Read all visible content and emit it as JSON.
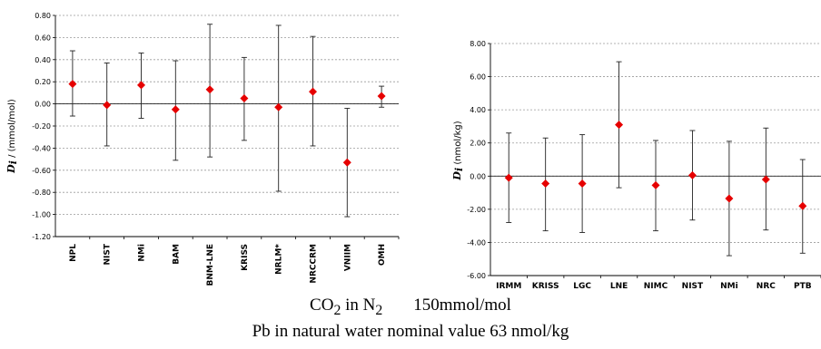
{
  "captions": {
    "line1_gas": "CO",
    "line1_gas_sub": "2",
    "line1_in": " in N",
    "line1_in_sub": "2",
    "line1_value": "150mmol/mol",
    "line2": "Pb in natural water nominal value 63 nmol/kg"
  },
  "chart_data": [
    {
      "type": "scatter",
      "subtype": "errorbar",
      "ylabel_symbol": "D",
      "ylabel_sub": "i",
      "ylabel_unit": " / (mmol/mol)",
      "ylim": [
        -1.2,
        0.8
      ],
      "yticks": [
        -1.2,
        -1.0,
        -0.8,
        -0.6,
        -0.4,
        -0.2,
        0.0,
        0.2,
        0.4,
        0.6,
        0.8
      ],
      "ytick_labels": [
        "-1.20",
        "-1.00",
        "-0.80",
        "-0.60",
        "-0.40",
        "-0.20",
        "0.00",
        "0.20",
        "0.40",
        "0.60",
        "0.80"
      ],
      "grid": true,
      "categories": [
        "NPL",
        "NIST",
        "NMi",
        "BAM",
        "BNM-LNE",
        "KRISS",
        "NRLM*",
        "NRCCRM",
        "VNIIM",
        "OMH"
      ],
      "values": [
        0.18,
        -0.01,
        0.17,
        -0.05,
        0.13,
        0.05,
        -0.03,
        0.11,
        -0.53,
        0.07
      ],
      "upper": [
        0.48,
        0.37,
        0.46,
        0.39,
        0.72,
        0.42,
        0.71,
        0.61,
        -0.04,
        0.16
      ],
      "lower": [
        -0.11,
        -0.38,
        -0.13,
        -0.51,
        -0.48,
        -0.33,
        -0.79,
        -0.38,
        -1.02,
        -0.03
      ],
      "marker_color": "#e60000"
    },
    {
      "type": "scatter",
      "subtype": "errorbar",
      "ylabel_symbol": "D",
      "ylabel_sub": "i",
      "ylabel_unit": " (nmol/kg)",
      "ylim": [
        -6.0,
        8.0
      ],
      "yticks": [
        -6,
        -4,
        -2,
        0,
        2,
        4,
        6,
        8
      ],
      "ytick_labels": [
        "-6.00",
        "-4.00",
        "-2.00",
        "0.00",
        "2.00",
        "4.00",
        "6.00",
        "8.00"
      ],
      "grid": true,
      "categories": [
        "IRMM",
        "KRISS",
        "LGC",
        "LNE",
        "NIMC",
        "NIST",
        "NMi",
        "NRC",
        "PTB"
      ],
      "values": [
        -0.1,
        -0.45,
        -0.45,
        3.1,
        -0.55,
        0.05,
        -1.35,
        -0.2,
        -1.8
      ],
      "upper": [
        2.6,
        2.3,
        2.5,
        6.9,
        2.15,
        2.75,
        2.1,
        2.9,
        1.0
      ],
      "lower": [
        -2.8,
        -3.3,
        -3.4,
        -0.7,
        -3.3,
        -2.65,
        -4.8,
        -3.25,
        -4.65
      ],
      "marker_color": "#e60000"
    }
  ]
}
